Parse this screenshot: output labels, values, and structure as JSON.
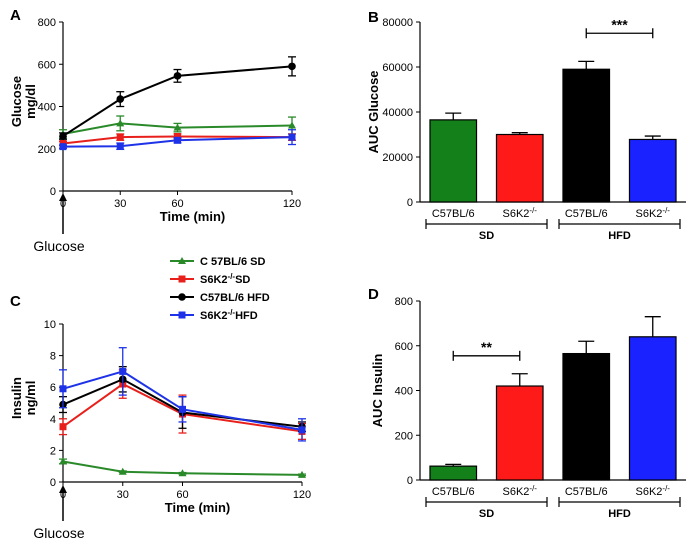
{
  "panels": [
    "A",
    "B",
    "C",
    "D"
  ],
  "arrow_text": "Glucose",
  "legend": [
    {
      "label": "C 57BL/6 SD",
      "color": "#2a8a2a",
      "marker": "triangle"
    },
    {
      "label": "S6K2-/-SD",
      "color": "#e8201c",
      "marker": "square"
    },
    {
      "label": "C57BL/6 HFD",
      "color": "#000000",
      "marker": "circle"
    },
    {
      "label": "S6K2-/-HFD",
      "color": "#1e33e8",
      "marker": "square"
    }
  ],
  "chart_data": [
    {
      "panel": "A",
      "type": "line",
      "xlabel": "Time (min)",
      "ylabel": "Glucose mg/dl",
      "x": [
        0,
        30,
        60,
        120
      ],
      "xticks": [
        0,
        30,
        60,
        120
      ],
      "xlim": [
        0,
        120
      ],
      "ylim": [
        0,
        800
      ],
      "yticks": [
        0,
        200,
        400,
        600,
        800
      ],
      "series": [
        {
          "name": "C 57BL/6 SD",
          "color": "#2a8a2a",
          "marker": "triangle",
          "values": [
            270,
            320,
            300,
            310
          ],
          "errors": [
            20,
            35,
            20,
            40
          ]
        },
        {
          "name": "S6K2-/-SD",
          "color": "#e8201c",
          "marker": "square",
          "values": [
            225,
            255,
            258,
            255
          ],
          "errors": [
            10,
            15,
            12,
            15
          ]
        },
        {
          "name": "C57BL/6 HFD",
          "color": "#000000",
          "marker": "circle",
          "values": [
            260,
            435,
            545,
            590
          ],
          "errors": [
            15,
            35,
            30,
            45
          ]
        },
        {
          "name": "S6K2-/-HFD",
          "color": "#1e33e8",
          "marker": "square",
          "values": [
            210,
            212,
            240,
            255
          ],
          "errors": [
            8,
            15,
            12,
            35
          ]
        }
      ]
    },
    {
      "panel": "B",
      "type": "bar",
      "ylabel": "AUC Glucose",
      "ylim": [
        0,
        80000
      ],
      "yticks": [
        0,
        20000,
        40000,
        60000,
        80000
      ],
      "categories": [
        "C57BL/6",
        "S6K2-/-",
        "C57BL/6",
        "S6K2-/-"
      ],
      "groups": [
        {
          "label": "SD",
          "bars": [
            0,
            1
          ]
        },
        {
          "label": "HFD",
          "bars": [
            2,
            3
          ]
        }
      ],
      "values": [
        36500,
        30000,
        59000,
        27800
      ],
      "errors": [
        3000,
        800,
        3500,
        1500
      ],
      "colors": [
        "#14801a",
        "#ff1a1a",
        "#000000",
        "#1a22ff"
      ],
      "significance": [
        {
          "bars": [
            2,
            3
          ],
          "label": "***",
          "y": 75000
        }
      ]
    },
    {
      "panel": "C",
      "type": "line",
      "xlabel": "Time (min)",
      "ylabel": "Insulin ng/ml",
      "x": [
        0,
        30,
        60,
        120
      ],
      "xticks": [
        0,
        30,
        60,
        120
      ],
      "xlim": [
        0,
        120
      ],
      "ylim": [
        0,
        10
      ],
      "yticks": [
        0,
        2,
        4,
        6,
        8,
        10
      ],
      "series": [
        {
          "name": "C 57BL/6 SD",
          "color": "#2a8a2a",
          "marker": "triangle",
          "values": [
            1.3,
            0.65,
            0.55,
            0.45
          ],
          "errors": [
            0.15,
            0.05,
            0.05,
            0.05
          ]
        },
        {
          "name": "S6K2-/-SD",
          "color": "#e8201c",
          "marker": "square",
          "values": [
            3.5,
            6.2,
            4.3,
            3.2
          ],
          "errors": [
            0.5,
            0.9,
            1.2,
            0.5
          ]
        },
        {
          "name": "C57BL/6 HFD",
          "color": "#000000",
          "marker": "circle",
          "values": [
            4.9,
            6.5,
            4.4,
            3.5
          ],
          "errors": [
            0.5,
            0.8,
            1.0,
            0.3
          ]
        },
        {
          "name": "S6K2-/-HFD",
          "color": "#1e33e8",
          "marker": "square",
          "values": [
            5.9,
            7.0,
            4.6,
            3.3
          ],
          "errors": [
            1.2,
            1.5,
            0.8,
            0.7
          ]
        }
      ]
    },
    {
      "panel": "D",
      "type": "bar",
      "ylabel": "AUC Insulin",
      "ylim": [
        0,
        800
      ],
      "yticks": [
        0,
        200,
        400,
        600,
        800
      ],
      "categories": [
        "C57BL/6",
        "S6K2-/-",
        "C57BL/6",
        "S6K2-/-"
      ],
      "groups": [
        {
          "label": "SD",
          "bars": [
            0,
            1
          ]
        },
        {
          "label": "HFD",
          "bars": [
            2,
            3
          ]
        }
      ],
      "values": [
        62,
        420,
        565,
        640
      ],
      "errors": [
        8,
        55,
        55,
        90
      ],
      "colors": [
        "#14801a",
        "#ff1a1a",
        "#000000",
        "#1a22ff"
      ],
      "significance": [
        {
          "bars": [
            0,
            1
          ],
          "label": "**",
          "y": 555
        }
      ]
    }
  ]
}
